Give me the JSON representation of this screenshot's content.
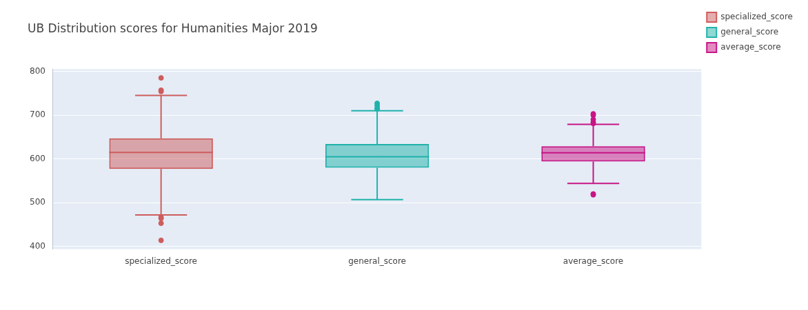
{
  "chart_data": {
    "type": "box",
    "title": "UB Distribution scores for Humanities Major 2019",
    "categories": [
      "specialized_score",
      "general_score",
      "average_score"
    ],
    "series": [
      {
        "name": "specialized_score",
        "color": "#cd5c5c",
        "min": 472,
        "q1": 577,
        "median": 615,
        "q3": 647,
        "max": 745,
        "outliers": [
          785,
          757,
          754,
          467,
          464,
          453,
          414
        ]
      },
      {
        "name": "general_score",
        "color": "#20b2aa",
        "min": 507,
        "q1": 580,
        "median": 605,
        "q3": 634,
        "max": 710,
        "outliers": [
          727,
          722,
          716,
          714
        ]
      },
      {
        "name": "average_score",
        "color": "#c71585",
        "min": 544,
        "q1": 594,
        "median": 614,
        "q3": 629,
        "max": 679,
        "outliers": [
          703,
          700,
          690,
          684,
          681,
          520,
          518
        ]
      }
    ],
    "ylim": [
      394,
      805
    ],
    "yticks": [
      400,
      500,
      600,
      700,
      800
    ],
    "grid": true,
    "legend": "top-right"
  }
}
